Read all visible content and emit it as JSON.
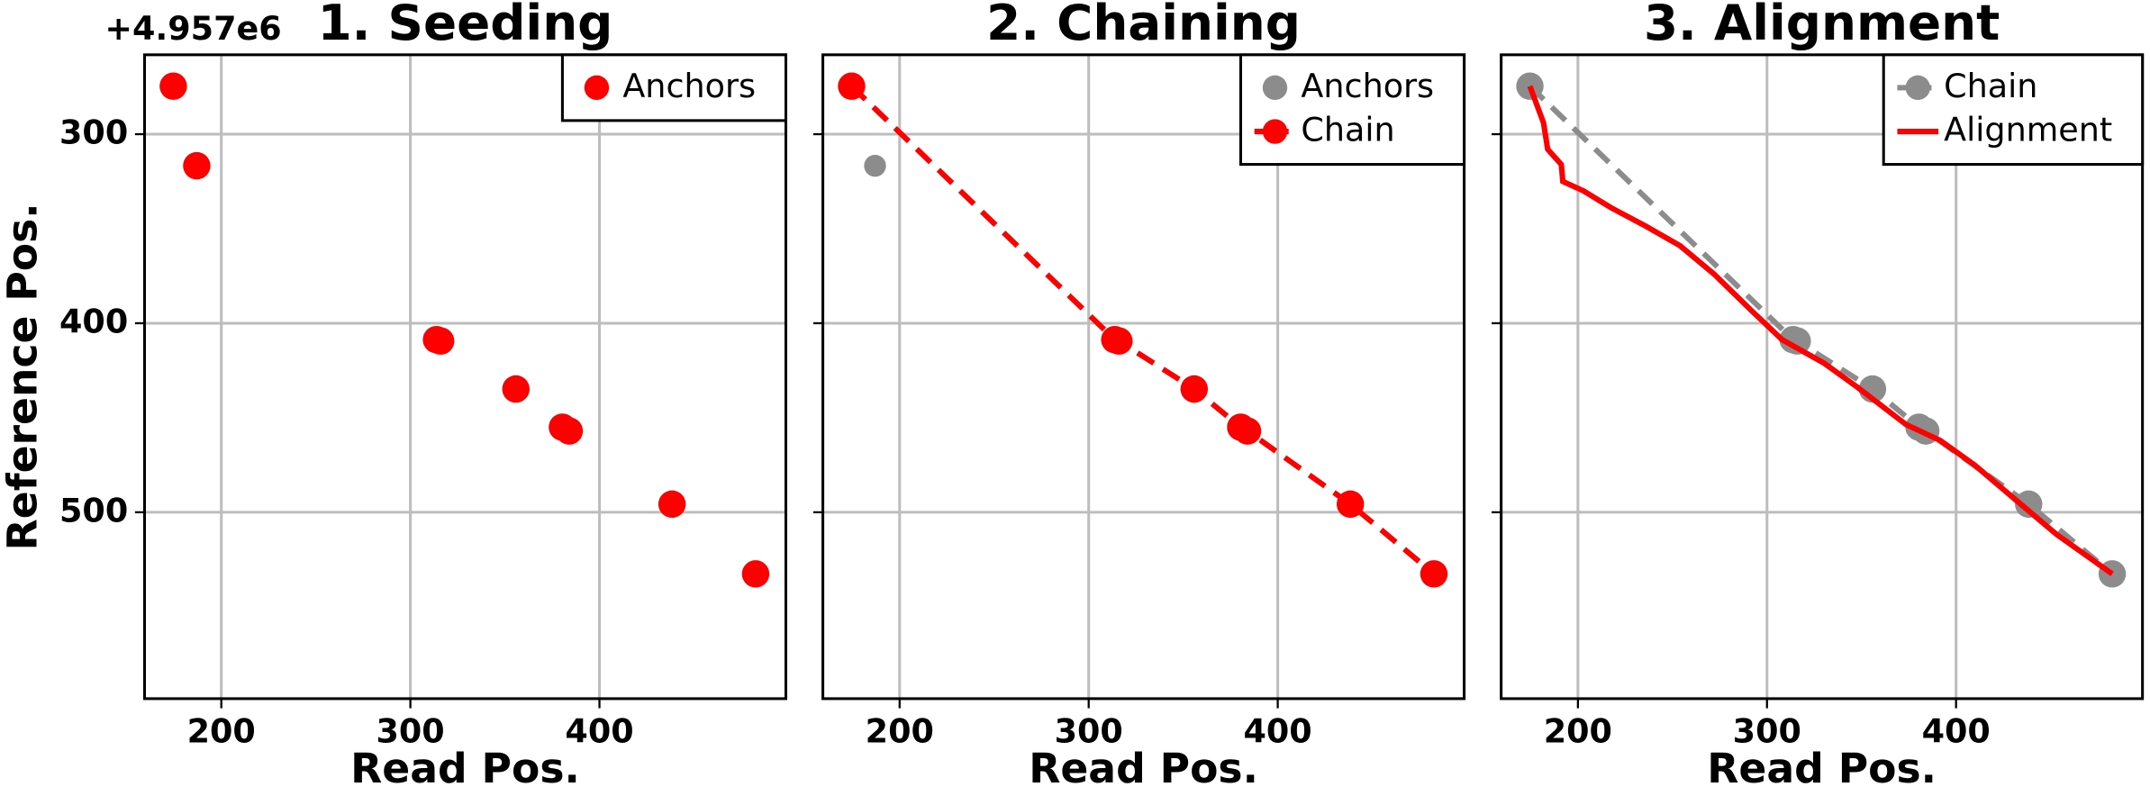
{
  "chart_data": [
    {
      "type": "scatter",
      "title": "1. Seeding",
      "xlabel": "Read Pos.",
      "ylabel": "Reference Pos.",
      "offset_text": "+4.957e6",
      "xlim": [
        159.4,
        498.6
      ],
      "ylim": [
        258,
        598.6
      ],
      "y_inverted": true,
      "xticks": [
        200,
        300,
        400
      ],
      "yticks": [
        300,
        400,
        500
      ],
      "show_ytick_labels": true,
      "grid": true,
      "legend": "upper right",
      "series": [
        {
          "name": "Anchors",
          "color": "#ff0000",
          "line": "none",
          "marker": true,
          "x": [
            174.6,
            187,
            313.8,
            316,
            355.8,
            380.4,
            384,
            438.4,
            482.6
          ],
          "values": [
            274.6,
            316.7,
            408.7,
            409.4,
            434.8,
            455,
            457,
            495.7,
            532.6
          ]
        }
      ]
    },
    {
      "type": "line",
      "title": "2. Chaining",
      "xlabel": "Read Pos.",
      "xlim": [
        159.4,
        498.6
      ],
      "ylim": [
        258,
        598.6
      ],
      "y_inverted": true,
      "xticks": [
        200,
        300,
        400
      ],
      "yticks": [
        300,
        400,
        500
      ],
      "show_ytick_labels": false,
      "grid": true,
      "legend": "upper right",
      "series": [
        {
          "name": "Anchors",
          "color": "#8c8c8c",
          "line": "none",
          "marker": true,
          "marker_small": true,
          "x": [
            174.6,
            187,
            313.8,
            316,
            355.8,
            380.4,
            384,
            438.4,
            482.6
          ],
          "values": [
            274.6,
            316.7,
            408.7,
            409.4,
            434.8,
            455,
            457,
            495.7,
            532.6
          ]
        },
        {
          "name": "Chain",
          "color": "#ff0000",
          "line": "dashed",
          "marker": true,
          "x": [
            174.6,
            313.8,
            316,
            355.8,
            380.4,
            384,
            438.4,
            482.6
          ],
          "values": [
            274.6,
            408.7,
            409.4,
            434.8,
            455,
            457,
            495.7,
            532.6
          ]
        }
      ]
    },
    {
      "type": "line",
      "title": "3. Alignment",
      "xlabel": "Read Pos.",
      "xlim": [
        159.4,
        498.6
      ],
      "ylim": [
        258,
        598.6
      ],
      "y_inverted": true,
      "xticks": [
        200,
        300,
        400
      ],
      "yticks": [
        300,
        400,
        500
      ],
      "show_ytick_labels": false,
      "grid": true,
      "legend": "upper right",
      "series": [
        {
          "name": "Chain",
          "color": "#8c8c8c",
          "line": "dashed",
          "marker": true,
          "x": [
            174.6,
            313.8,
            316,
            355.8,
            380.4,
            384,
            438.4,
            482.6
          ],
          "values": [
            274.6,
            408.7,
            409.4,
            434.8,
            455,
            457,
            495.7,
            532.6
          ]
        },
        {
          "name": "Alignment",
          "color": "#ff0000",
          "line": "solid",
          "marker": false,
          "x": [
            174.6,
            181.8,
            184,
            191.2,
            192,
            203,
            217.7,
            235.8,
            254,
            272,
            292.5,
            308,
            330,
            348,
            373.6,
            391.6,
            409.8,
            431.6,
            453,
            482.6
          ],
          "values": [
            274.6,
            294,
            308,
            316,
            325,
            330,
            339,
            348.6,
            359,
            374,
            394,
            408.7,
            421,
            434,
            453.6,
            462,
            475,
            493.5,
            511.6,
            532.6
          ]
        }
      ]
    }
  ]
}
